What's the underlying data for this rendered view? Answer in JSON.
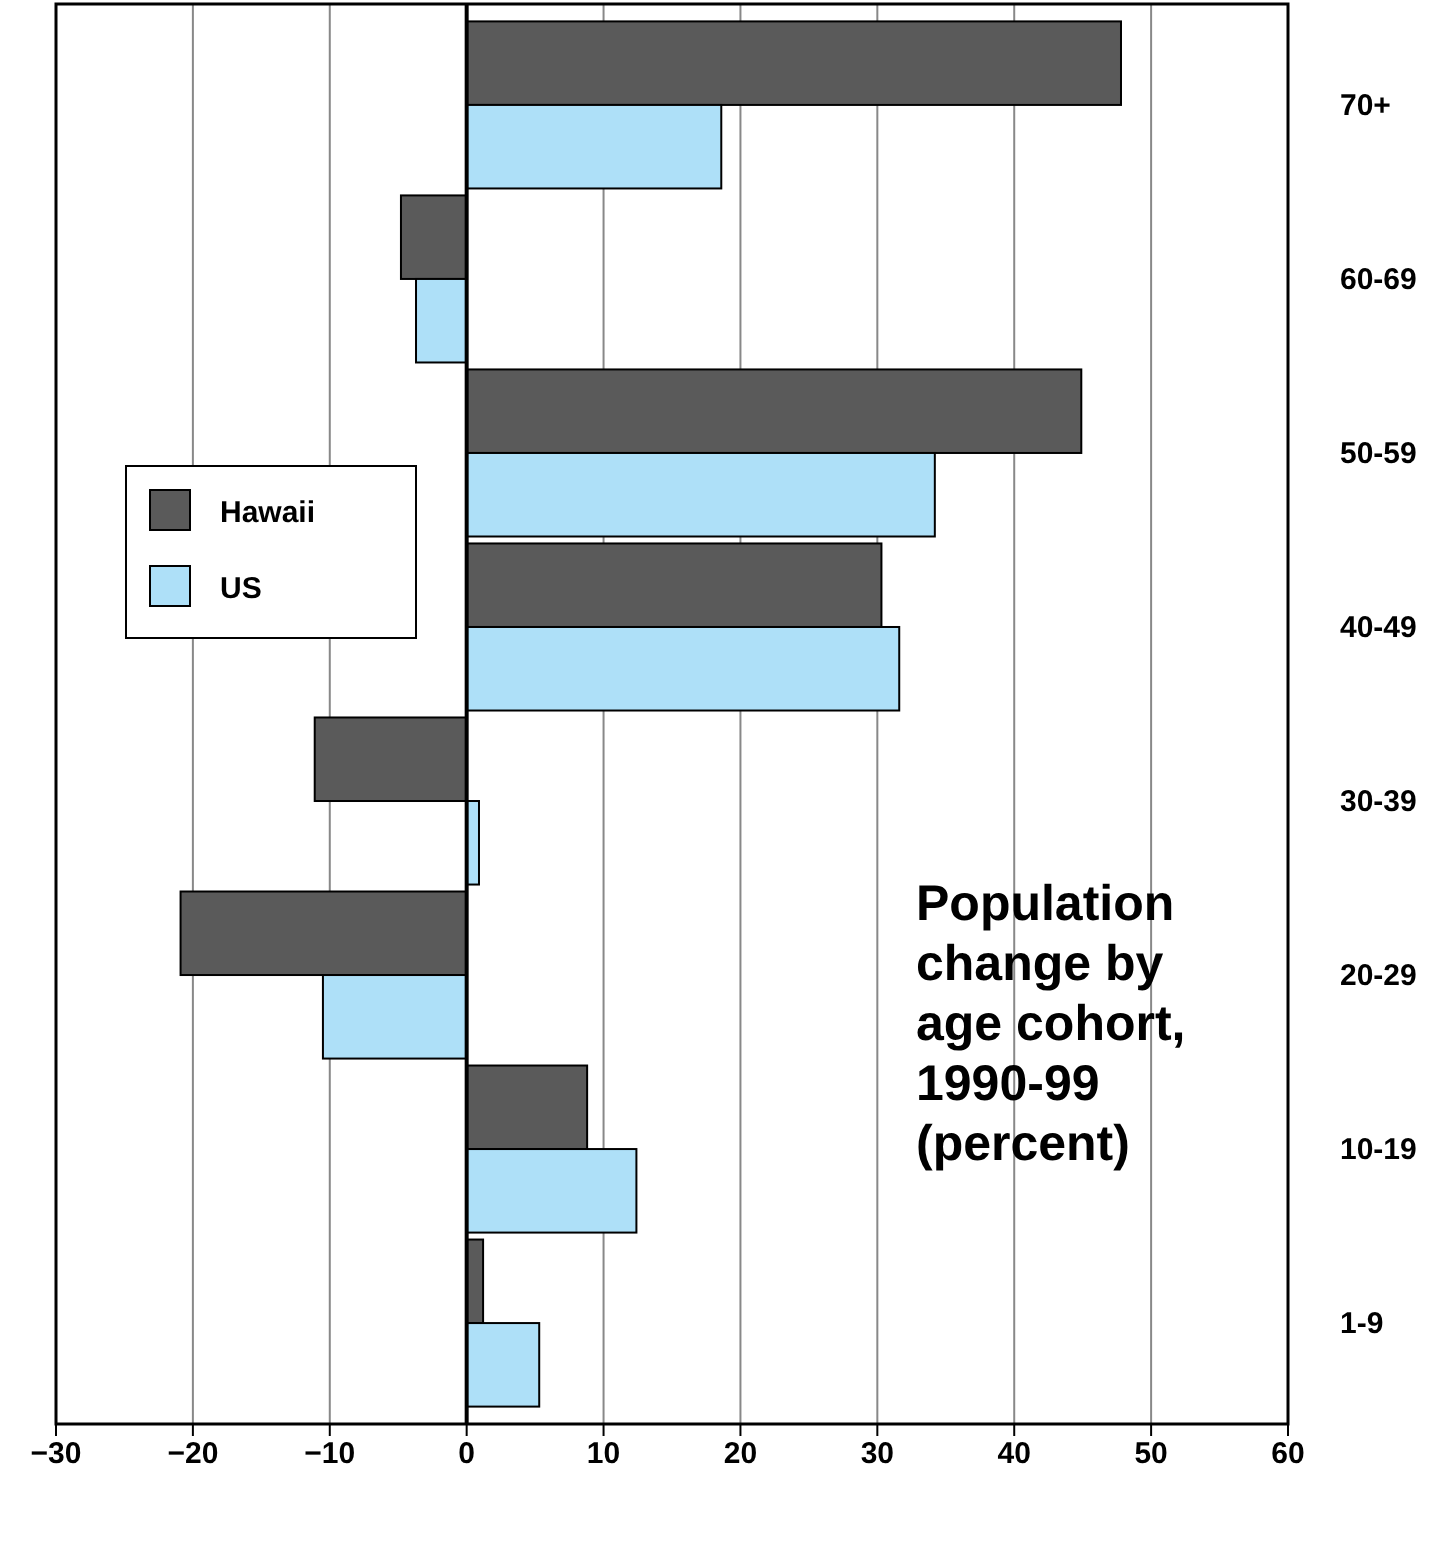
{
  "chart_data": {
    "type": "bar",
    "orientation": "horizontal",
    "title": "Population change by age cohort, 1990-99 (percent)",
    "categories": [
      "70+",
      "60-69",
      "50-59",
      "40-49",
      "30-39",
      "20-29",
      "10-19",
      "1-9"
    ],
    "series": [
      {
        "name": "Hawaii",
        "color": "#5a5a5a",
        "values": [
          47.8,
          -4.8,
          44.9,
          30.3,
          -11.1,
          -20.9,
          8.8,
          1.2
        ]
      },
      {
        "name": "US",
        "color": "#aee0f8",
        "values": [
          18.6,
          -3.7,
          34.2,
          31.6,
          0.9,
          -10.5,
          12.4,
          5.3
        ]
      }
    ],
    "xlim": [
      -30,
      60
    ],
    "xticks": [
      {
        "value": -30,
        "label": "−30"
      },
      {
        "value": -20,
        "label": "−20"
      },
      {
        "value": -10,
        "label": "−10"
      },
      0,
      10,
      20,
      30,
      40,
      50,
      60
    ],
    "grid": "x",
    "legend": "left"
  }
}
